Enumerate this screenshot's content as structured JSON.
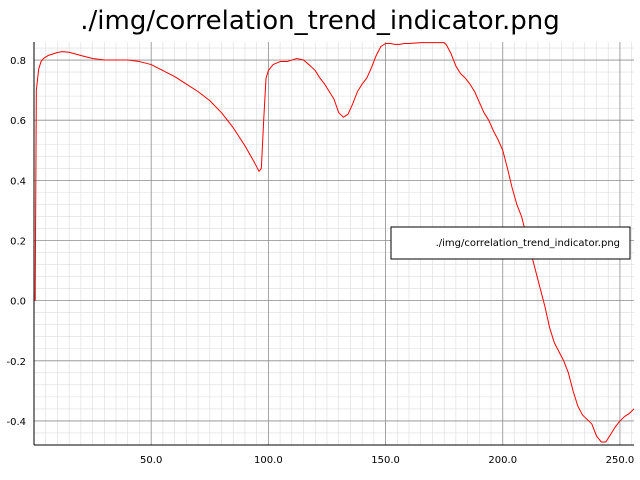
{
  "chart_data": {
    "type": "line",
    "title": "./img/correlation_trend_indicator.png",
    "xlabel": "",
    "ylabel": "",
    "xlim": [
      0,
      256
    ],
    "ylim": [
      -0.48,
      0.86
    ],
    "x_ticks": [
      {
        "value": 50,
        "label": "50.0"
      },
      {
        "value": 100,
        "label": "100.0"
      },
      {
        "value": 150,
        "label": "150.0"
      },
      {
        "value": 200,
        "label": "200.0"
      },
      {
        "value": 250,
        "label": "250.0"
      }
    ],
    "y_ticks": [
      {
        "value": 0.8,
        "label": "0.8"
      },
      {
        "value": 0.6,
        "label": "0.6"
      },
      {
        "value": 0.4,
        "label": "0.4"
      },
      {
        "value": 0.2,
        "label": "0.2"
      },
      {
        "value": 0.0,
        "label": "0.0"
      },
      {
        "value": -0.2,
        "label": "-0.2"
      },
      {
        "value": -0.4,
        "label": "-0.4"
      }
    ],
    "grid": true,
    "legend_position": "right",
    "series": [
      {
        "name": "./img/correlation_trend_indicator.png",
        "color": "#ff0000",
        "x": [
          0.5,
          1,
          2,
          3,
          4,
          6,
          8,
          10,
          12,
          15,
          20,
          25,
          30,
          35,
          40,
          45,
          50,
          55,
          60,
          65,
          70,
          75,
          80,
          85,
          90,
          94,
          96,
          97,
          98,
          99,
          100,
          102,
          105,
          108,
          110,
          112,
          115,
          118,
          120,
          122,
          124,
          126,
          128,
          130,
          132,
          134,
          136,
          138,
          140,
          142,
          144,
          146,
          148,
          150,
          152,
          154,
          156,
          158,
          160,
          165,
          170,
          175,
          176,
          178,
          180,
          182,
          184,
          186,
          188,
          190,
          192,
          194,
          196,
          198,
          200,
          202,
          204,
          206,
          208,
          210,
          212,
          214,
          216,
          218,
          220,
          222,
          224,
          226,
          228,
          230,
          232,
          234,
          236,
          238,
          240,
          242,
          244,
          246,
          248,
          250,
          252,
          254,
          256
        ],
        "values": [
          0.0,
          0.7,
          0.77,
          0.795,
          0.805,
          0.815,
          0.82,
          0.825,
          0.828,
          0.826,
          0.815,
          0.805,
          0.8,
          0.8,
          0.8,
          0.795,
          0.785,
          0.765,
          0.745,
          0.72,
          0.695,
          0.665,
          0.625,
          0.575,
          0.515,
          0.46,
          0.43,
          0.44,
          0.6,
          0.74,
          0.765,
          0.785,
          0.795,
          0.795,
          0.8,
          0.805,
          0.8,
          0.78,
          0.765,
          0.74,
          0.72,
          0.695,
          0.67,
          0.625,
          0.61,
          0.62,
          0.655,
          0.695,
          0.72,
          0.74,
          0.775,
          0.815,
          0.845,
          0.855,
          0.855,
          0.852,
          0.852,
          0.855,
          0.855,
          0.858,
          0.858,
          0.858,
          0.85,
          0.82,
          0.78,
          0.755,
          0.74,
          0.72,
          0.695,
          0.66,
          0.625,
          0.6,
          0.565,
          0.535,
          0.5,
          0.44,
          0.375,
          0.32,
          0.28,
          0.22,
          0.16,
          0.1,
          0.04,
          -0.02,
          -0.09,
          -0.14,
          -0.17,
          -0.2,
          -0.24,
          -0.3,
          -0.35,
          -0.38,
          -0.395,
          -0.41,
          -0.45,
          -0.47,
          -0.47,
          -0.445,
          -0.42,
          -0.4,
          -0.385,
          -0.375,
          -0.36
        ]
      }
    ]
  }
}
